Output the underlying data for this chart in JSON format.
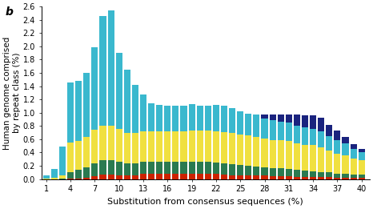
{
  "x_labels": [
    1,
    2,
    3,
    4,
    5,
    6,
    7,
    8,
    9,
    10,
    11,
    12,
    13,
    14,
    15,
    16,
    17,
    18,
    19,
    20,
    21,
    22,
    23,
    24,
    25,
    26,
    27,
    28,
    29,
    30,
    31,
    32,
    33,
    34,
    35,
    36,
    37,
    38,
    39,
    40
  ],
  "colors_order": [
    "red",
    "green",
    "yellow",
    "cyan",
    "navy"
  ],
  "colors": {
    "cyan": "#3ab8ce",
    "yellow": "#f0e040",
    "green": "#2a7a50",
    "red": "#cc2200",
    "navy": "#1a237e"
  },
  "data": {
    "red": [
      0.0,
      0.0,
      0.0,
      0.01,
      0.01,
      0.02,
      0.04,
      0.07,
      0.07,
      0.06,
      0.06,
      0.06,
      0.08,
      0.08,
      0.08,
      0.08,
      0.08,
      0.08,
      0.08,
      0.08,
      0.08,
      0.08,
      0.07,
      0.06,
      0.06,
      0.06,
      0.05,
      0.05,
      0.04,
      0.04,
      0.04,
      0.03,
      0.03,
      0.03,
      0.03,
      0.03,
      0.02,
      0.02,
      0.02,
      0.02
    ],
    "green": [
      0.0,
      0.0,
      0.01,
      0.1,
      0.13,
      0.16,
      0.2,
      0.22,
      0.22,
      0.2,
      0.18,
      0.18,
      0.18,
      0.18,
      0.18,
      0.18,
      0.18,
      0.18,
      0.18,
      0.18,
      0.18,
      0.17,
      0.17,
      0.16,
      0.15,
      0.14,
      0.14,
      0.13,
      0.12,
      0.12,
      0.11,
      0.11,
      0.1,
      0.09,
      0.08,
      0.07,
      0.06,
      0.06,
      0.05,
      0.05
    ],
    "yellow": [
      0.01,
      0.02,
      0.05,
      0.44,
      0.44,
      0.46,
      0.5,
      0.52,
      0.52,
      0.5,
      0.46,
      0.46,
      0.46,
      0.46,
      0.46,
      0.46,
      0.46,
      0.46,
      0.47,
      0.47,
      0.47,
      0.47,
      0.47,
      0.47,
      0.46,
      0.46,
      0.45,
      0.43,
      0.43,
      0.43,
      0.42,
      0.4,
      0.39,
      0.39,
      0.37,
      0.33,
      0.3,
      0.28,
      0.24,
      0.21
    ],
    "cyan": [
      0.05,
      0.13,
      0.43,
      0.9,
      0.9,
      0.96,
      1.25,
      1.65,
      1.73,
      1.14,
      0.95,
      0.72,
      0.56,
      0.42,
      0.4,
      0.38,
      0.38,
      0.38,
      0.4,
      0.38,
      0.38,
      0.4,
      0.4,
      0.38,
      0.35,
      0.33,
      0.33,
      0.3,
      0.3,
      0.28,
      0.28,
      0.27,
      0.26,
      0.25,
      0.24,
      0.22,
      0.21,
      0.18,
      0.15,
      0.12
    ],
    "navy": [
      0.0,
      0.0,
      0.0,
      0.0,
      0.0,
      0.0,
      0.0,
      0.0,
      0.0,
      0.0,
      0.0,
      0.0,
      0.0,
      0.0,
      0.0,
      0.0,
      0.0,
      0.0,
      0.0,
      0.0,
      0.0,
      0.0,
      0.0,
      0.0,
      0.0,
      0.0,
      0.0,
      0.06,
      0.08,
      0.1,
      0.12,
      0.16,
      0.18,
      0.2,
      0.2,
      0.17,
      0.14,
      0.1,
      0.07,
      0.06
    ]
  },
  "xlabel": "Substitution from consensus sequences (%)",
  "ylabel": "Human genome comprised\nby repeat class (%)",
  "ylim": [
    0,
    2.6
  ],
  "yticks": [
    0.0,
    0.2,
    0.4,
    0.6,
    0.8,
    1.0,
    1.2,
    1.4,
    1.6,
    1.8,
    2.0,
    2.2,
    2.4,
    2.6
  ],
  "xtick_positions": [
    1,
    4,
    7,
    10,
    13,
    16,
    19,
    22,
    25,
    28,
    31,
    34,
    37,
    40
  ],
  "panel_label": "b",
  "bar_width": 0.8
}
